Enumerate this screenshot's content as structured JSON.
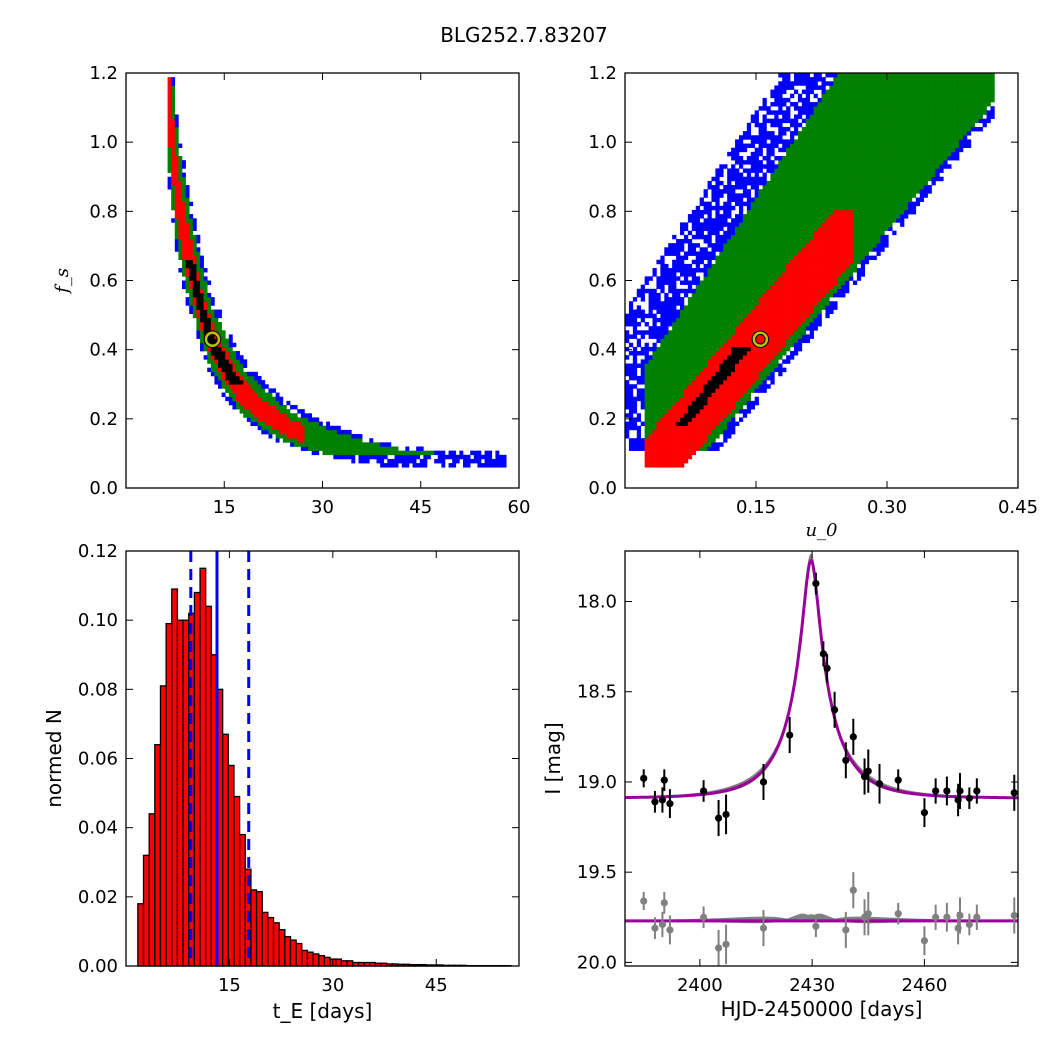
{
  "figure": {
    "title": "BLG252.7.83207",
    "colors": {
      "sigma1": "#000000",
      "sigma2": "#ff0000",
      "sigma3": "#008000",
      "sigma4": "#0000ff",
      "best_fit_marker": "#bfbf00",
      "model_curve": "#990099",
      "model_band": "#808080",
      "residual_points": "#808080",
      "hist_fill": "#ff0000",
      "hist_lines": "#0000ff"
    }
  },
  "chart_data": [
    {
      "id": "panel_fs_vs_tE",
      "type": "heatmap",
      "title": "",
      "xlabel": "",
      "ylabel": "f_s",
      "xlim": [
        0,
        60
      ],
      "ylim": [
        0.0,
        1.2
      ],
      "xticks": [
        "15",
        "30",
        "45",
        "60"
      ],
      "yticks": [
        "0.0",
        "0.2",
        "0.4",
        "0.6",
        "0.8",
        "1.0",
        "1.2"
      ],
      "best_fit": {
        "tE": 13.2,
        "fs": 0.43
      },
      "ridge": [
        [
          6.3,
          1.17
        ],
        [
          7.0,
          1.0
        ],
        [
          7.8,
          0.85
        ],
        [
          9.0,
          0.72
        ],
        [
          10.2,
          0.62
        ],
        [
          11.5,
          0.52
        ],
        [
          13,
          0.43
        ],
        [
          15.5,
          0.34
        ],
        [
          18,
          0.27
        ],
        [
          21,
          0.22
        ],
        [
          25,
          0.17
        ],
        [
          30,
          0.135
        ],
        [
          36,
          0.105
        ],
        [
          42,
          0.085
        ],
        [
          50,
          0.075
        ],
        [
          58,
          0.07
        ]
      ]
    },
    {
      "id": "panel_fs_vs_u0",
      "type": "heatmap",
      "title": "",
      "xlabel": "u_0",
      "ylabel": "",
      "xlim": [
        0.0,
        0.45
      ],
      "ylim": [
        0.0,
        1.2
      ],
      "xticks": [
        "0.15",
        "0.30",
        "0.45"
      ],
      "yticks": [
        "0.0",
        "0.2",
        "0.4",
        "0.6",
        "0.8",
        "1.0",
        "1.2"
      ],
      "best_fit": {
        "u0": 0.155,
        "fs": 0.43
      },
      "ridge": [
        [
          0.035,
          0.07
        ],
        [
          0.4,
          1.19
        ]
      ]
    },
    {
      "id": "panel_tE_hist",
      "type": "bar",
      "title": "",
      "xlabel": "t_E  [days]",
      "ylabel": "normed N",
      "xlim": [
        0,
        57
      ],
      "ylim": [
        0.0,
        0.12
      ],
      "xticks": [
        "15",
        "30",
        "45"
      ],
      "yticks": [
        "0.00",
        "0.02",
        "0.04",
        "0.06",
        "0.08",
        "0.10",
        "0.12"
      ],
      "bin_start": 0.9,
      "bin_width": 0.82,
      "values": [
        0.0,
        0.018,
        0.032,
        0.044,
        0.064,
        0.081,
        0.099,
        0.109,
        0.1,
        0.1,
        0.102,
        0.108,
        0.115,
        0.104,
        0.09,
        0.08,
        0.067,
        0.058,
        0.049,
        0.038,
        0.028,
        0.022,
        0.0215,
        0.0155,
        0.014,
        0.0125,
        0.0105,
        0.0085,
        0.0075,
        0.0065,
        0.0045,
        0.004,
        0.0035,
        0.003,
        0.0025,
        0.002,
        0.002,
        0.0015,
        0.0015,
        0.001,
        0.001,
        0.001,
        0.001,
        0.0008,
        0.0008,
        0.0006,
        0.0006,
        0.0005,
        0.0005,
        0.0004,
        0.0004,
        0.0004,
        0.0003,
        0.0003,
        0.0003,
        0.0002,
        0.0002,
        0.0002,
        0.0002,
        0.0001,
        0.0001,
        0.0001,
        0.0001,
        0.0001,
        0.0001,
        0.0001,
        0.0001
      ],
      "median_line": 13.2,
      "interval_lines": [
        9.4,
        17.8
      ]
    },
    {
      "id": "panel_lightcurve",
      "type": "scatter",
      "title": "",
      "xlabel": "HJD-2450000 [days]",
      "ylabel": "I [mag]",
      "xlim": [
        2380,
        2485
      ],
      "ylim": [
        20.02,
        17.72
      ],
      "y_inverted": true,
      "xticks": [
        "2400",
        "2430",
        "2460"
      ],
      "yticks": [
        "18.0",
        "18.5",
        "19.0",
        "19.5",
        "20.0"
      ],
      "model": {
        "t0": 2429.7,
        "tE": 13.2,
        "u0": 0.155,
        "fs": 0.43,
        "baseline": 19.09
      },
      "residual_baseline": 19.77,
      "series": [
        {
          "name": "",
          "points": [
            [
              2385,
              18.98,
              0.05
            ],
            [
              2388,
              19.11,
              0.06
            ],
            [
              2390,
              19.1,
              0.07
            ],
            [
              2390.5,
              18.99,
              0.06
            ],
            [
              2392,
              19.12,
              0.08
            ],
            [
              2401,
              19.05,
              0.06
            ],
            [
              2405,
              19.2,
              0.1
            ],
            [
              2407,
              19.18,
              0.11
            ],
            [
              2417,
              19.0,
              0.1
            ],
            [
              2424,
              18.74,
              0.1
            ],
            [
              2431,
              17.9,
              0.06
            ],
            [
              2433,
              18.29,
              0.07
            ],
            [
              2434,
              18.37,
              0.08
            ],
            [
              2436,
              18.6,
              0.1
            ],
            [
              2439,
              18.88,
              0.1
            ],
            [
              2441,
              18.75,
              0.1
            ],
            [
              2444,
              18.97,
              0.1
            ],
            [
              2445,
              18.94,
              0.12
            ],
            [
              2448,
              19.01,
              0.11
            ],
            [
              2453,
              18.99,
              0.06
            ],
            [
              2460,
              19.17,
              0.08
            ],
            [
              2463,
              19.05,
              0.07
            ],
            [
              2466,
              19.05,
              0.08
            ],
            [
              2469,
              19.1,
              0.09
            ],
            [
              2469.5,
              19.05,
              0.1
            ],
            [
              2472,
              19.09,
              0.06
            ],
            [
              2474,
              19.05,
              0.07
            ],
            [
              2484,
              19.06,
              0.1
            ]
          ]
        },
        {
          "name": "",
          "points": [
            [
              2385,
              19.66,
              0.05
            ],
            [
              2388,
              19.81,
              0.06
            ],
            [
              2390,
              19.79,
              0.07
            ],
            [
              2390.5,
              19.67,
              0.06
            ],
            [
              2392,
              19.82,
              0.08
            ],
            [
              2401,
              19.75,
              0.06
            ],
            [
              2405,
              19.92,
              0.1
            ],
            [
              2407,
              19.9,
              0.11
            ],
            [
              2417,
              19.81,
              0.1
            ],
            [
              2431,
              19.8,
              0.06
            ],
            [
              2441,
              19.6,
              0.1
            ],
            [
              2439,
              19.82,
              0.1
            ],
            [
              2444,
              19.75,
              0.1
            ],
            [
              2445,
              19.73,
              0.12
            ],
            [
              2453,
              19.73,
              0.06
            ],
            [
              2460,
              19.88,
              0.08
            ],
            [
              2463,
              19.75,
              0.07
            ],
            [
              2466,
              19.75,
              0.08
            ],
            [
              2469,
              19.81,
              0.09
            ],
            [
              2469.5,
              19.74,
              0.1
            ],
            [
              2472,
              19.79,
              0.06
            ],
            [
              2474,
              19.75,
              0.07
            ],
            [
              2484,
              19.74,
              0.1
            ]
          ]
        }
      ]
    }
  ]
}
